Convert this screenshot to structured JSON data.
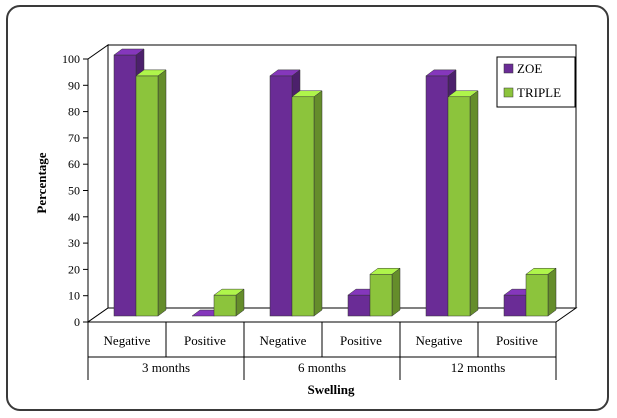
{
  "chart_data": {
    "type": "bar",
    "title": "",
    "xlabel": "Swelling",
    "ylabel": "Percentage",
    "ylim": [
      0,
      100
    ],
    "yticks": [
      0,
      10,
      20,
      30,
      40,
      50,
      60,
      70,
      80,
      90,
      100
    ],
    "groups": [
      "3 months",
      "6 months",
      "12 months"
    ],
    "subcategories": [
      "Negative",
      "Positive"
    ],
    "categories": [
      "Negative",
      "Positive",
      "Negative",
      "Positive",
      "Negative",
      "Positive"
    ],
    "series": [
      {
        "name": "ZOE",
        "color": "#6a2c96",
        "values": [
          100,
          0,
          92,
          8,
          92,
          8
        ]
      },
      {
        "name": "TRIPLE",
        "color": "#8cc43c",
        "values": [
          92,
          8,
          84,
          16,
          84,
          16
        ]
      }
    ],
    "legend_position": "top-right",
    "grid": false
  }
}
